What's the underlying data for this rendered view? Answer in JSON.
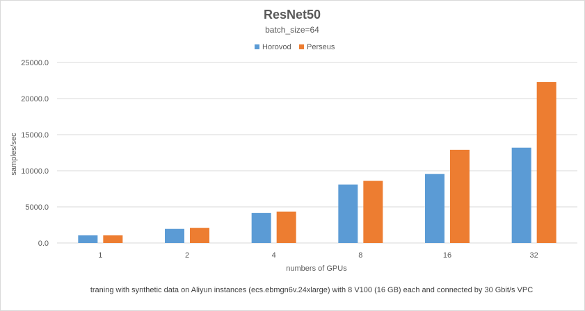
{
  "chart_data": {
    "type": "bar",
    "title": "ResNet50",
    "subtitle": "batch_size=64",
    "xlabel": "numbers of GPUs",
    "ylabel": "samples/sec",
    "footnote": "traning with synthetic data on Aliyun instances (ecs.ebmgn6v.24xlarge) with 8  V100 (16 GB) each and connected by 30 Gbit/s VPC",
    "categories": [
      "1",
      "2",
      "4",
      "8",
      "16",
      "32"
    ],
    "series": [
      {
        "name": "Horovod",
        "color": "#5b9bd5",
        "values": [
          1050,
          1950,
          4150,
          8100,
          9550,
          13200
        ]
      },
      {
        "name": "Perseus",
        "color": "#ed7d31",
        "values": [
          1050,
          2100,
          4350,
          8600,
          12900,
          22300
        ]
      }
    ],
    "ylim": [
      0,
      25000
    ],
    "yticks": [
      0,
      5000,
      10000,
      15000,
      20000,
      25000
    ],
    "ytick_labels": [
      "0.0",
      "5000.0",
      "10000.0",
      "15000.0",
      "20000.0",
      "25000.0"
    ],
    "legend_position": "top",
    "grid": true
  }
}
